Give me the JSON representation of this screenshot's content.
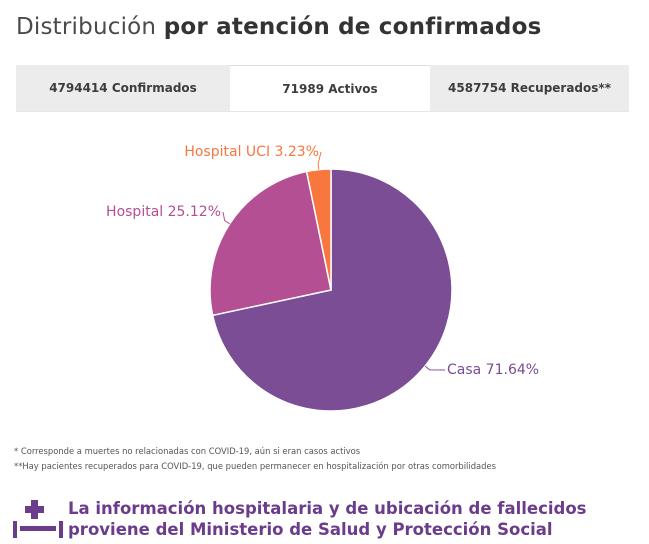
{
  "header": {
    "title_light": "Distribución",
    "title_bold": "por atención de confirmados"
  },
  "tabs": [
    {
      "label": "4794414 Confirmados"
    },
    {
      "label": "71989 Activos"
    },
    {
      "label": "4587754 Recuperados**"
    }
  ],
  "chart_data": {
    "type": "pie",
    "title": "",
    "slices": [
      {
        "name": "Casa",
        "value": 71.64,
        "label": "Casa 71.64%",
        "color": "#7a4d95"
      },
      {
        "name": "Hospital",
        "value": 25.12,
        "label": "Hospital 25.12%",
        "color": "#b44f94"
      },
      {
        "name": "Hospital UCI",
        "value": 3.23,
        "label": "Hospital UCI 3.23%",
        "color": "#f7773f"
      }
    ]
  },
  "notes": {
    "note1": "* Corresponde a muertes no relacionadas con COVID-19, aún si eran casos activos",
    "note2": "**Hay pacientes recuperados para COVID-19, que pueden permanecer en hospitalización por otras comorbilidades"
  },
  "info": {
    "line1": "La información hospitalaria y de ubicación de fallecidos",
    "line2": "proviene del Ministerio de Salud y Protección Social",
    "icon": "hospital-bed-icon"
  },
  "colors": {
    "accent": "#6b3c8a"
  }
}
